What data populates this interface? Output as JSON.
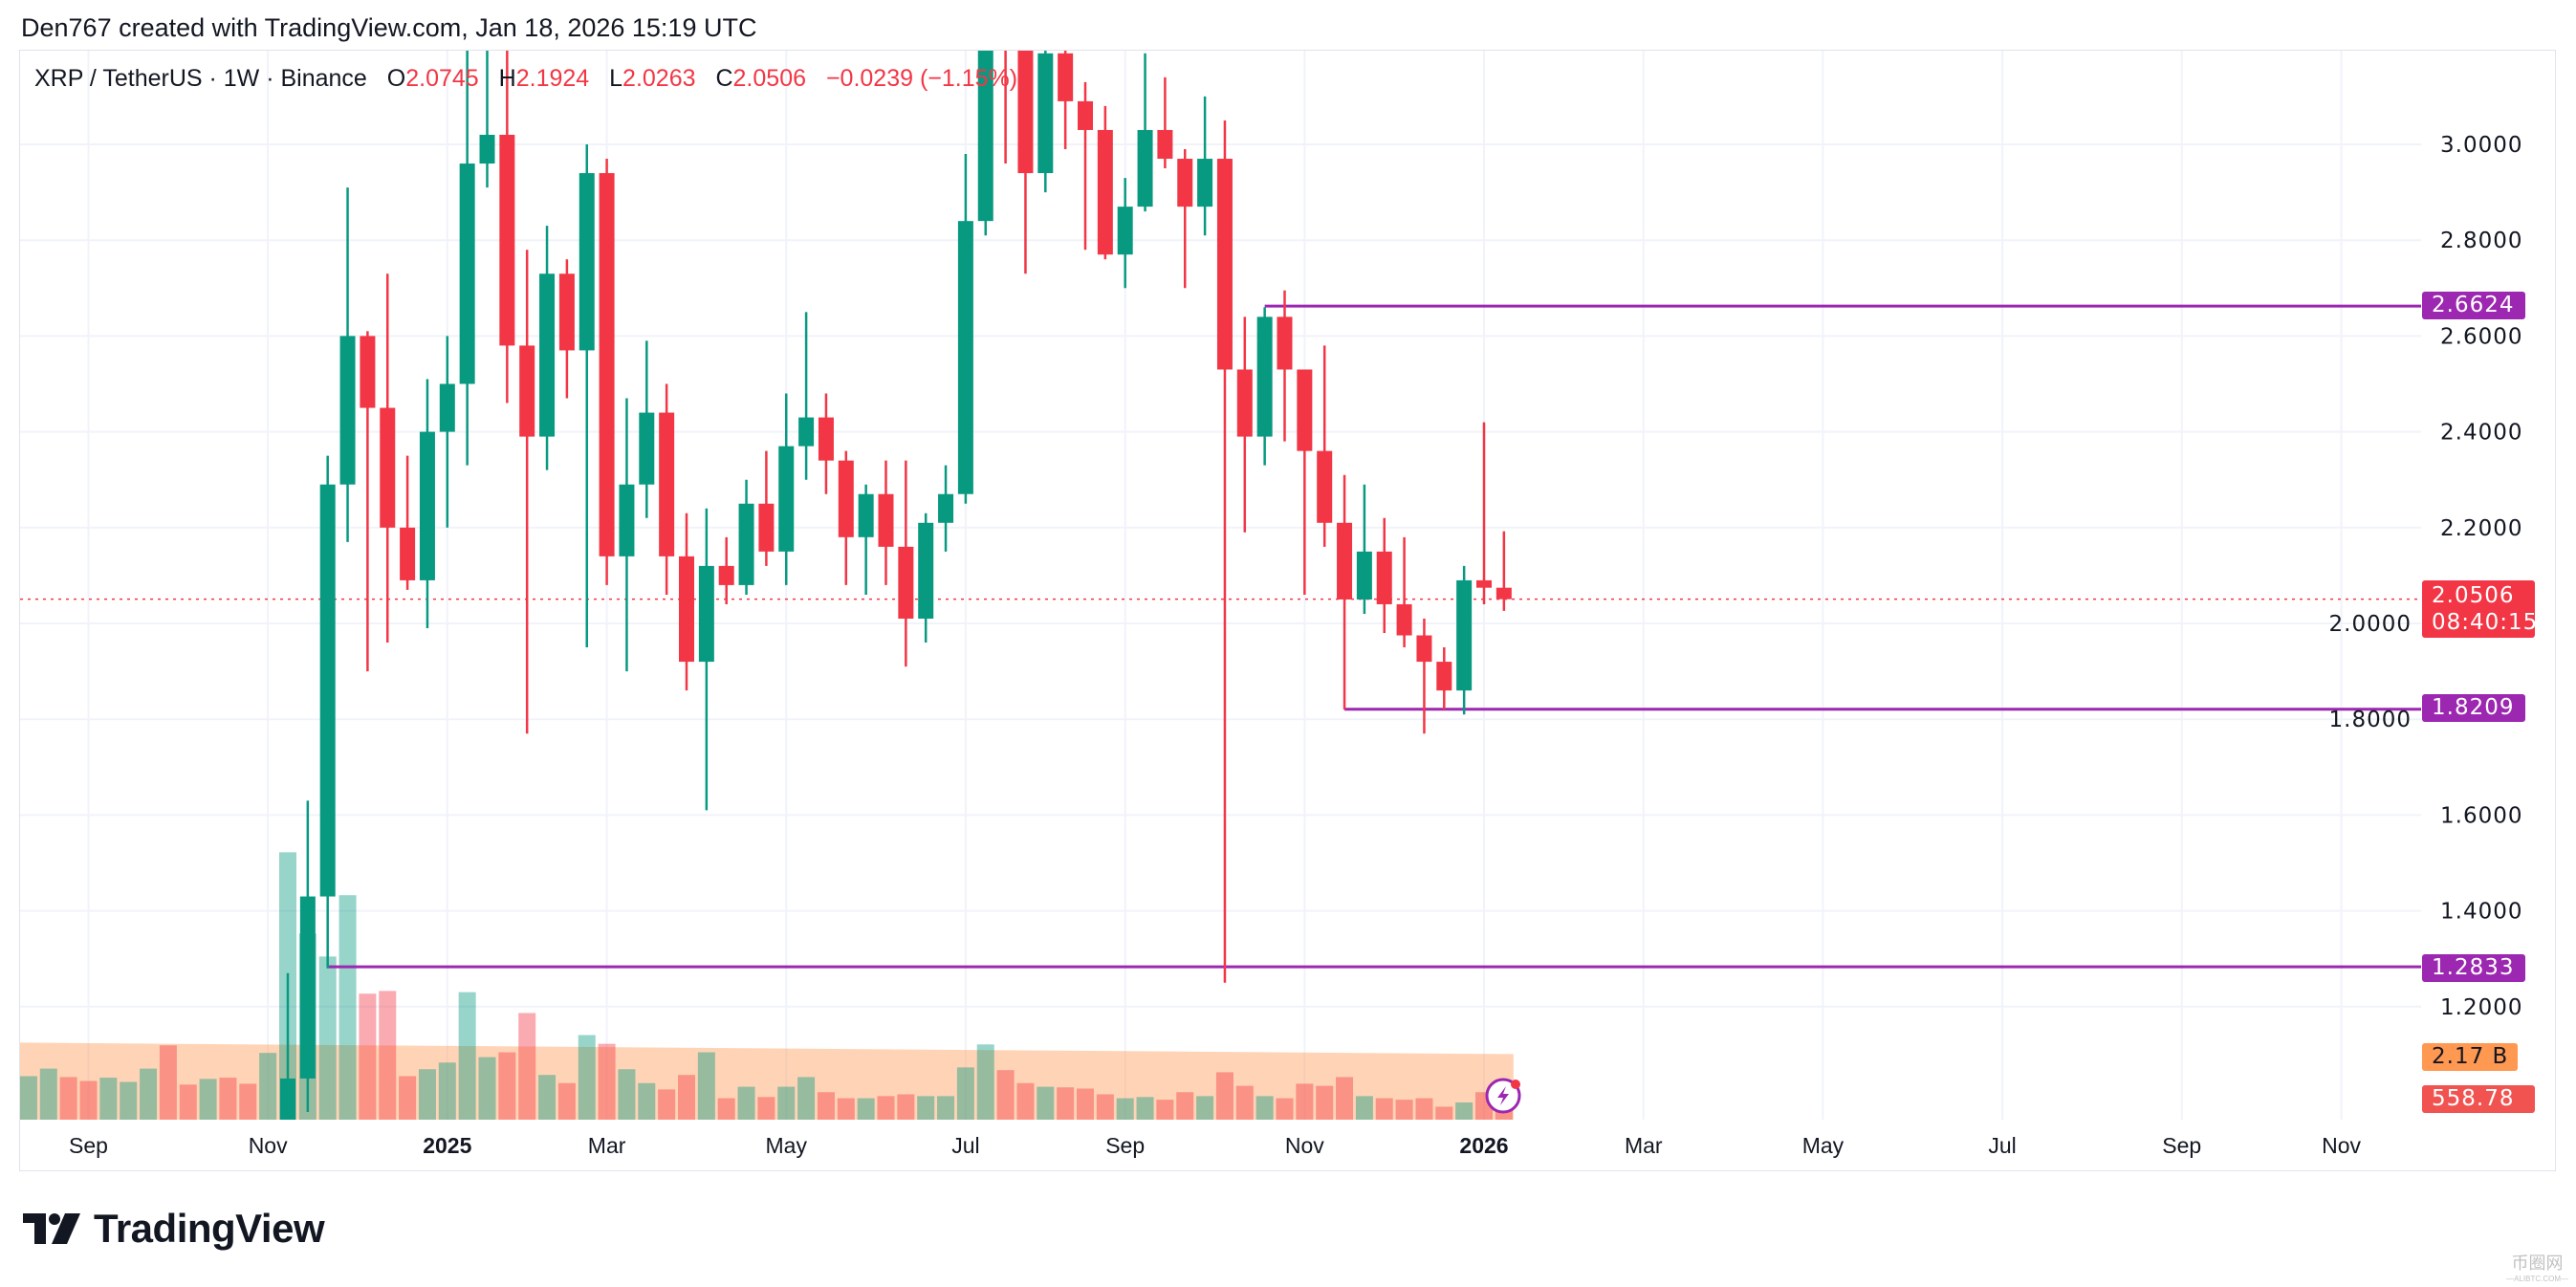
{
  "credit": "Den767 created with TradingView.com, Jan 18, 2026 15:19 UTC",
  "legend": {
    "symbol": "XRP / TetherUS · 1W · Binance",
    "open_label": "O",
    "open": "2.0745",
    "high_label": "H",
    "high": "2.1924",
    "low_label": "L",
    "low": "2.0263",
    "close_label": "C",
    "close": "2.0506",
    "change": "−0.0239 (−1.15%)"
  },
  "price_tags": {
    "resistance": "2.6624",
    "support": "1.8209",
    "low_level": "1.2833",
    "last_price": "2.0506",
    "countdown": "08:40:15",
    "volume_ma": "2.17 B",
    "volume": "558.78 M"
  },
  "colors": {
    "up": "#089981",
    "down": "#f23645",
    "level": "#9c27b0",
    "ma": "#ff9850"
  },
  "logo": "TradingView",
  "watermark": {
    "text": "币圈网",
    "sub": "—ALIBTC.COM—"
  },
  "chart_data": {
    "type": "candlestick",
    "title": "XRP / TetherUS · 1W · Binance",
    "ylim": [
      1.2,
      3.2
    ],
    "y_ticks": [
      "3.0000",
      "2.8000",
      "2.6000",
      "2.4000",
      "2.2000",
      "2.0000",
      "1.8000",
      "1.6000",
      "1.4000",
      "1.2000"
    ],
    "x_ticks": [
      "Sep",
      "Nov",
      "2025",
      "Mar",
      "May",
      "Jul",
      "Sep",
      "Nov",
      "2026",
      "Mar",
      "May",
      "Jul",
      "Sep",
      "Nov"
    ],
    "x_tick_week_index": [
      3,
      12,
      21,
      29,
      38,
      47,
      55,
      64,
      73,
      81,
      90,
      99,
      108,
      116
    ],
    "grid": true,
    "horizontal_levels": [
      {
        "price": 2.6624,
        "from_week": 62
      },
      {
        "price": 1.8209,
        "from_week": 66
      },
      {
        "price": 1.2833,
        "from_week": 15
      }
    ],
    "last_price": 2.0506,
    "pre_volume_fields": [
      "volume_B",
      "up"
    ],
    "pre_volumes": [
      [
        1.44,
        1
      ],
      [
        1.69,
        1
      ],
      [
        1.41,
        0
      ],
      [
        1.28,
        0
      ],
      [
        1.39,
        1
      ],
      [
        1.25,
        1
      ],
      [
        1.69,
        1
      ],
      [
        2.46,
        0
      ],
      [
        1.16,
        0
      ],
      [
        1.35,
        1
      ],
      [
        1.39,
        0
      ],
      [
        1.19,
        0
      ],
      [
        2.21,
        1
      ]
    ],
    "fields": [
      "open",
      "high",
      "low",
      "close",
      "volume_B"
    ],
    "candles": [
      [
        0.56,
        1.27,
        0.54,
        1.05,
        8.85
      ],
      [
        1.05,
        1.63,
        0.98,
        1.43,
        6.16
      ],
      [
        1.43,
        2.35,
        1.28,
        2.29,
        5.4
      ],
      [
        2.29,
        2.91,
        2.17,
        2.6,
        7.43
      ],
      [
        2.6,
        2.61,
        1.9,
        2.45,
        4.17
      ],
      [
        2.45,
        2.73,
        1.96,
        2.2,
        4.26
      ],
      [
        2.2,
        2.35,
        2.07,
        2.09,
        1.44
      ],
      [
        2.09,
        2.51,
        1.99,
        2.4,
        1.67
      ],
      [
        2.4,
        2.6,
        2.2,
        2.5,
        1.89
      ],
      [
        2.5,
        3.4,
        2.33,
        2.96,
        4.22
      ],
      [
        2.96,
        3.3,
        2.91,
        3.02,
        2.07
      ],
      [
        3.02,
        3.3,
        2.46,
        2.58,
        2.23
      ],
      [
        2.58,
        2.78,
        1.77,
        2.39,
        3.53
      ],
      [
        2.39,
        2.83,
        2.32,
        2.73,
        1.48
      ],
      [
        2.73,
        2.76,
        2.47,
        2.57,
        1.21
      ],
      [
        2.57,
        3.0,
        1.95,
        2.94,
        2.8
      ],
      [
        2.94,
        2.97,
        2.08,
        2.14,
        2.51
      ],
      [
        2.14,
        2.47,
        1.9,
        2.29,
        1.67
      ],
      [
        2.29,
        2.59,
        2.22,
        2.44,
        1.21
      ],
      [
        2.44,
        2.5,
        2.06,
        2.14,
        1.0
      ],
      [
        2.14,
        2.23,
        1.86,
        1.92,
        1.48
      ],
      [
        1.92,
        2.24,
        1.61,
        2.12,
        2.23
      ],
      [
        2.12,
        2.18,
        2.04,
        2.08,
        0.71
      ],
      [
        2.08,
        2.3,
        2.06,
        2.25,
        1.09
      ],
      [
        2.25,
        2.36,
        2.12,
        2.15,
        0.75
      ],
      [
        2.15,
        2.48,
        2.08,
        2.37,
        1.09
      ],
      [
        2.37,
        2.65,
        2.3,
        2.43,
        1.41
      ],
      [
        2.43,
        2.48,
        2.27,
        2.34,
        0.91
      ],
      [
        2.34,
        2.36,
        2.08,
        2.18,
        0.71
      ],
      [
        2.18,
        2.29,
        2.06,
        2.27,
        0.71
      ],
      [
        2.27,
        2.34,
        2.08,
        2.16,
        0.78
      ],
      [
        2.16,
        2.34,
        1.91,
        2.01,
        0.84
      ],
      [
        2.01,
        2.23,
        1.96,
        2.21,
        0.78
      ],
      [
        2.21,
        2.33,
        2.15,
        2.27,
        0.78
      ],
      [
        2.27,
        2.98,
        2.25,
        2.84,
        1.73
      ],
      [
        2.84,
        3.66,
        2.81,
        3.45,
        2.49
      ],
      [
        3.45,
        3.55,
        2.96,
        3.25,
        1.64
      ],
      [
        3.25,
        3.3,
        2.73,
        2.94,
        1.21
      ],
      [
        2.94,
        3.33,
        2.9,
        3.19,
        1.09
      ],
      [
        3.19,
        3.22,
        2.99,
        3.09,
        1.07
      ],
      [
        3.09,
        3.13,
        2.78,
        3.03,
        1.03
      ],
      [
        3.03,
        3.08,
        2.76,
        2.77,
        0.84
      ],
      [
        2.77,
        2.93,
        2.7,
        2.87,
        0.71
      ],
      [
        2.87,
        3.19,
        2.86,
        3.03,
        0.75
      ],
      [
        3.03,
        3.14,
        2.95,
        2.97,
        0.66
      ],
      [
        2.97,
        2.99,
        2.7,
        2.87,
        0.91
      ],
      [
        2.87,
        3.1,
        2.81,
        2.97,
        0.78
      ],
      [
        2.97,
        3.05,
        1.25,
        2.53,
        1.57
      ],
      [
        2.53,
        2.64,
        2.19,
        2.39,
        1.12
      ],
      [
        2.39,
        2.66,
        2.33,
        2.64,
        0.78
      ],
      [
        2.64,
        2.695,
        2.38,
        2.53,
        0.71
      ],
      [
        2.53,
        2.53,
        2.06,
        2.36,
        1.19
      ],
      [
        2.36,
        2.58,
        2.16,
        2.21,
        1.12
      ],
      [
        2.21,
        2.31,
        1.82,
        2.05,
        1.41
      ],
      [
        2.05,
        2.29,
        2.02,
        2.15,
        0.78
      ],
      [
        2.15,
        2.22,
        1.98,
        2.04,
        0.71
      ],
      [
        2.04,
        2.18,
        1.95,
        1.975,
        0.66
      ],
      [
        1.975,
        2.01,
        1.77,
        1.92,
        0.71
      ],
      [
        1.92,
        1.95,
        1.82,
        1.86,
        0.43
      ],
      [
        1.86,
        2.12,
        1.81,
        2.09,
        0.57
      ],
      [
        2.09,
        2.42,
        2.04,
        2.0745,
        0.91
      ],
      [
        2.0745,
        2.1924,
        2.0263,
        2.0506,
        0.559
      ]
    ],
    "volume_ma_range_B": [
      2.55,
      2.17
    ]
  }
}
